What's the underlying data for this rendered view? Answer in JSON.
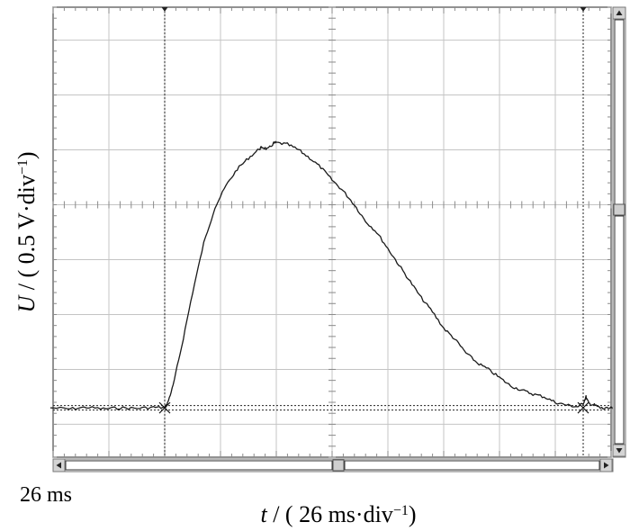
{
  "chart_data": {
    "type": "line",
    "title": "",
    "ylabel": {
      "symbol": "U",
      "rest": " / ( 0.5 V·div",
      "sup": "−1",
      "close": ")"
    },
    "xlabel": {
      "symbol": "t",
      "rest": " / ( 26 ms·div",
      "sup": "−1",
      "close": ")"
    },
    "scale_readout": "26 ms",
    "grid": true,
    "xlim": [
      0,
      10
    ],
    "ylim": [
      -6.6,
      1.6
    ],
    "x_unit": "div",
    "y_unit": "div",
    "cursor_x": [
      2.0,
      9.5
    ],
    "baseline_y": -5.7,
    "series": [
      {
        "x": [
          -0.05,
          0.3,
          0.6,
          0.9,
          1.2,
          1.5,
          1.8,
          2.0,
          2.05,
          2.15,
          2.3,
          2.5,
          2.7,
          2.9,
          3.1,
          3.3,
          3.5,
          3.7,
          3.75,
          3.85,
          3.95,
          4.0,
          4.2,
          4.4,
          4.6,
          4.8,
          5.0,
          5.2,
          5.4,
          5.6,
          5.8,
          6.0,
          6.2,
          6.4,
          6.6,
          6.8,
          7.0,
          7.2,
          7.4,
          7.6,
          7.8,
          8.0,
          8.2,
          8.4,
          8.6,
          8.8,
          9.0,
          9.2,
          9.4,
          9.5,
          9.55,
          9.6,
          9.7,
          9.8,
          9.9,
          10.05
        ],
        "y": [
          -5.7,
          -5.72,
          -5.69,
          -5.72,
          -5.7,
          -5.71,
          -5.69,
          -5.7,
          -5.62,
          -5.3,
          -4.6,
          -3.6,
          -2.7,
          -2.05,
          -1.65,
          -1.35,
          -1.15,
          -0.98,
          -0.95,
          -0.99,
          -0.88,
          -0.87,
          -0.9,
          -1.0,
          -1.15,
          -1.32,
          -1.55,
          -1.75,
          -2.0,
          -2.3,
          -2.5,
          -2.8,
          -3.1,
          -3.4,
          -3.7,
          -3.95,
          -4.25,
          -4.45,
          -4.7,
          -4.88,
          -5.0,
          -5.15,
          -5.3,
          -5.38,
          -5.45,
          -5.5,
          -5.6,
          -5.65,
          -5.68,
          -5.62,
          -5.5,
          -5.62,
          -5.65,
          -5.7,
          -5.72,
          -5.7
        ]
      }
    ]
  }
}
